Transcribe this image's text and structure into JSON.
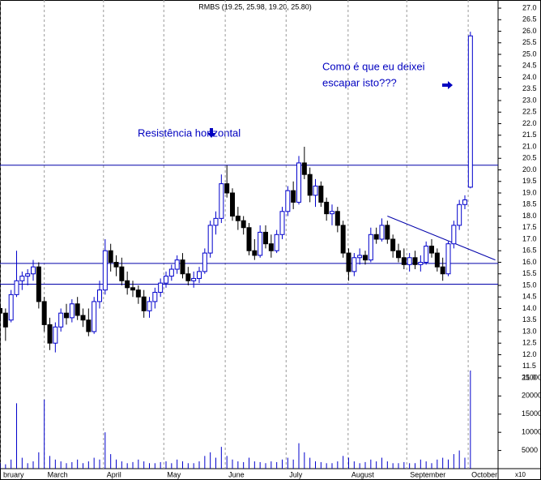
{
  "chart_data": {
    "type": "candlestick",
    "title": "RMBS (19.25, 25.98, 19.20, 25.80)",
    "annotations": [
      "Resistência horizontal",
      "Como é que eu deixei",
      "escapar isto???"
    ],
    "volume_unit": "x10",
    "up_color": "#0000cc",
    "down_color": "#000000",
    "line_color": "#0000aa",
    "volume_color": "#0000cc",
    "xlim": [
      0,
      90
    ],
    "xticks": [
      {
        "value": 0,
        "label": "bruary"
      },
      {
        "value": 8,
        "label": "March"
      },
      {
        "value": 18.7,
        "label": "April"
      },
      {
        "value": 29.6,
        "label": "May"
      },
      {
        "value": 40.7,
        "label": "June"
      },
      {
        "value": 51.7,
        "label": "July"
      },
      {
        "value": 62.9,
        "label": "August"
      },
      {
        "value": 73.5,
        "label": "September"
      },
      {
        "value": 84.6,
        "label": "October"
      }
    ],
    "grid": "x",
    "ylim": [
      10.7,
      27.3
    ],
    "yticks": [
      {
        "value": 11,
        "label": "11.0"
      },
      {
        "value": 11.5,
        "label": "11.5"
      },
      {
        "value": 12,
        "label": "12.0"
      },
      {
        "value": 12.5,
        "label": "12.5"
      },
      {
        "value": 13,
        "label": "13.0"
      },
      {
        "value": 13.5,
        "label": "13.5"
      },
      {
        "value": 14,
        "label": "14.0"
      },
      {
        "value": 14.5,
        "label": "14.5"
      },
      {
        "value": 15,
        "label": "15.0"
      },
      {
        "value": 15.5,
        "label": "15.5"
      },
      {
        "value": 16,
        "label": "16.0"
      },
      {
        "value": 16.5,
        "label": "16.5"
      },
      {
        "value": 17,
        "label": "17.0"
      },
      {
        "value": 17.5,
        "label": "17.5"
      },
      {
        "value": 18,
        "label": "18.0"
      },
      {
        "value": 18.5,
        "label": "18.5"
      },
      {
        "value": 19,
        "label": "19.0"
      },
      {
        "value": 19.5,
        "label": "19.5"
      },
      {
        "value": 20,
        "label": "20.0"
      },
      {
        "value": 20.5,
        "label": "20.5"
      },
      {
        "value": 21,
        "label": "21.0"
      },
      {
        "value": 21.5,
        "label": "21.5"
      },
      {
        "value": 22,
        "label": "22.0"
      },
      {
        "value": 22.5,
        "label": "22.5"
      },
      {
        "value": 23,
        "label": "23.0"
      },
      {
        "value": 23.5,
        "label": "23.5"
      },
      {
        "value": 24,
        "label": "24.0"
      },
      {
        "value": 24.5,
        "label": "24.5"
      },
      {
        "value": 25,
        "label": "25.0"
      },
      {
        "value": 25.5,
        "label": "25.5"
      },
      {
        "value": 26,
        "label": "26.0"
      },
      {
        "value": 26.5,
        "label": "26.5"
      },
      {
        "value": 27,
        "label": "27.0"
      }
    ],
    "hlines": [
      20.2,
      15.95,
      15.05
    ],
    "trendline": {
      "x": [
        70,
        89.5
      ],
      "y": [
        18.0,
        16.1
      ]
    },
    "ohlc": [
      [
        14,
        14.2,
        13.5,
        13.8
      ],
      [
        13.8,
        14.0,
        12.6,
        13.2
      ],
      [
        13.5,
        14.8,
        13.4,
        14.6
      ],
      [
        14.6,
        16.5,
        14.5,
        15.2
      ],
      [
        15.2,
        15.6,
        14.8,
        15.4
      ],
      [
        15.4,
        15.7,
        15.0,
        15.5
      ],
      [
        15.5,
        16.1,
        15.2,
        15.8
      ],
      [
        15.8,
        16.0,
        14.0,
        14.3
      ],
      [
        14.3,
        14.5,
        13.0,
        13.3
      ],
      [
        13.3,
        13.6,
        12.2,
        12.5
      ],
      [
        12.5,
        13.4,
        12.1,
        13.2
      ],
      [
        13.2,
        14.0,
        13.0,
        13.8
      ],
      [
        13.8,
        14.2,
        13.3,
        13.6
      ],
      [
        13.6,
        14.4,
        13.4,
        14.2
      ],
      [
        14.2,
        14.5,
        13.5,
        13.7
      ],
      [
        13.7,
        14.0,
        13.2,
        13.5
      ],
      [
        13.5,
        14.0,
        12.8,
        13.0
      ],
      [
        13.0,
        14.5,
        12.9,
        14.3
      ],
      [
        14.3,
        15.2,
        14.0,
        14.8
      ],
      [
        14.8,
        17.0,
        14.6,
        16.5
      ],
      [
        16.5,
        16.8,
        15.6,
        16.0
      ],
      [
        16.0,
        16.3,
        15.4,
        15.8
      ],
      [
        15.8,
        16.2,
        15.0,
        15.2
      ],
      [
        15.2,
        15.6,
        14.6,
        14.9
      ],
      [
        14.9,
        15.2,
        14.5,
        14.8
      ],
      [
        14.8,
        15.0,
        14.2,
        14.5
      ],
      [
        14.5,
        14.8,
        13.6,
        13.9
      ],
      [
        13.9,
        14.5,
        13.6,
        14.3
      ],
      [
        14.3,
        14.9,
        14.0,
        14.7
      ],
      [
        14.7,
        15.3,
        14.5,
        15.1
      ],
      [
        15.1,
        15.6,
        14.9,
        15.4
      ],
      [
        15.4,
        15.9,
        15.2,
        15.7
      ],
      [
        15.7,
        16.3,
        15.5,
        16.1
      ],
      [
        16.1,
        16.4,
        15.3,
        15.5
      ],
      [
        15.5,
        15.8,
        15.0,
        15.2
      ],
      [
        15.2,
        15.6,
        14.9,
        15.3
      ],
      [
        15.3,
        15.8,
        15.1,
        15.6
      ],
      [
        15.6,
        16.6,
        15.5,
        16.4
      ],
      [
        16.4,
        17.8,
        16.2,
        17.6
      ],
      [
        17.6,
        18.2,
        17.2,
        17.9
      ],
      [
        17.9,
        19.8,
        17.7,
        19.4
      ],
      [
        19.4,
        20.2,
        18.8,
        19.0
      ],
      [
        19.0,
        19.2,
        17.8,
        18.0
      ],
      [
        18.0,
        18.4,
        17.4,
        17.8
      ],
      [
        17.8,
        18.0,
        17.2,
        17.5
      ],
      [
        17.5,
        17.7,
        16.3,
        16.5
      ],
      [
        16.5,
        17.0,
        16.1,
        16.3
      ],
      [
        16.3,
        17.6,
        16.2,
        17.3
      ],
      [
        17.3,
        17.6,
        16.6,
        16.8
      ],
      [
        16.8,
        17.2,
        16.2,
        16.5
      ],
      [
        16.5,
        17.4,
        16.4,
        17.2
      ],
      [
        17.2,
        18.4,
        17.0,
        18.2
      ],
      [
        18.2,
        19.3,
        18.0,
        19.1
      ],
      [
        19.1,
        19.5,
        18.3,
        18.6
      ],
      [
        18.6,
        20.6,
        18.5,
        20.3
      ],
      [
        20.3,
        21.0,
        19.6,
        19.8
      ],
      [
        19.8,
        20.1,
        18.6,
        18.9
      ],
      [
        18.9,
        19.6,
        18.4,
        19.3
      ],
      [
        19.3,
        19.5,
        18.4,
        18.6
      ],
      [
        18.6,
        18.8,
        17.8,
        18.1
      ],
      [
        18.1,
        18.5,
        17.6,
        18.2
      ],
      [
        18.2,
        18.4,
        17.3,
        17.6
      ],
      [
        17.6,
        17.8,
        16.2,
        16.4
      ],
      [
        16.4,
        16.6,
        15.2,
        15.6
      ],
      [
        15.6,
        16.4,
        15.4,
        16.2
      ],
      [
        16.2,
        16.6,
        15.9,
        16.3
      ],
      [
        16.3,
        16.5,
        15.9,
        16.1
      ],
      [
        16.1,
        17.5,
        16.0,
        17.2
      ],
      [
        17.2,
        17.5,
        16.8,
        17.0
      ],
      [
        17.0,
        17.9,
        16.9,
        17.6
      ],
      [
        17.6,
        17.8,
        16.8,
        17.0
      ],
      [
        17.0,
        17.2,
        16.2,
        16.5
      ],
      [
        16.5,
        16.8,
        16.0,
        16.2
      ],
      [
        16.2,
        16.6,
        15.7,
        15.9
      ],
      [
        15.9,
        16.4,
        15.6,
        16.2
      ],
      [
        16.2,
        16.5,
        15.7,
        15.9
      ],
      [
        15.9,
        16.3,
        15.6,
        16.0
      ],
      [
        16.0,
        16.9,
        15.9,
        16.7
      ],
      [
        16.7,
        17.0,
        16.2,
        16.4
      ],
      [
        16.4,
        16.6,
        15.6,
        15.8
      ],
      [
        15.8,
        16.2,
        15.2,
        15.5
      ],
      [
        15.5,
        16.9,
        15.4,
        16.8
      ],
      [
        16.8,
        17.8,
        16.6,
        17.6
      ],
      [
        17.6,
        18.7,
        17.4,
        18.5
      ],
      [
        18.5,
        18.9,
        18.3,
        18.7
      ],
      [
        19.25,
        25.98,
        19.2,
        25.8
      ]
    ],
    "volume": [
      1500,
      1200,
      2500,
      18000,
      3000,
      1500,
      2000,
      4500,
      19000,
      3500,
      2500,
      2000,
      1500,
      1800,
      2500,
      1500,
      2000,
      3000,
      2500,
      10000,
      4000,
      2500,
      2000,
      1500,
      1800,
      2500,
      2000,
      1500,
      1500,
      1800,
      2000,
      1500,
      2500,
      2000,
      1500,
      1500,
      2000,
      3500,
      4500,
      3000,
      6000,
      3500,
      2500,
      2000,
      1800,
      3000,
      2000,
      1800,
      1500,
      2000,
      1800,
      2500,
      3000,
      2500,
      7000,
      4500,
      3000,
      2000,
      1800,
      1500,
      1500,
      2000,
      3500,
      3000,
      2000,
      1500,
      1800,
      2500,
      2000,
      3000,
      2000,
      1500,
      1500,
      1800,
      1500,
      1500,
      2500,
      2000,
      1500,
      2500,
      3000,
      2500,
      4000,
      5000,
      3000,
      27000
    ],
    "vol_ylim": [
      0,
      27000
    ],
    "vol_yticks": [
      5000,
      10000,
      15000,
      20000,
      25000
    ]
  }
}
